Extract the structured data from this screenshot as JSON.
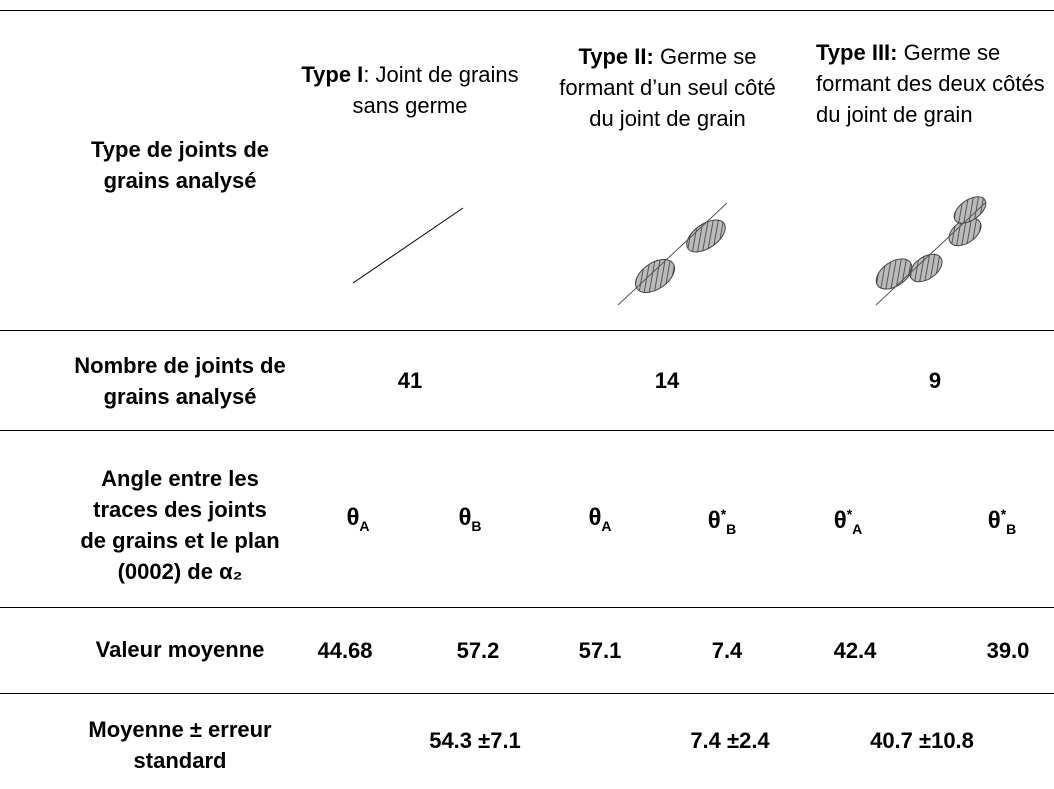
{
  "table": {
    "header": {
      "label": "Type de joints de grains analysé",
      "types": [
        {
          "bold": "Type I",
          "text": ": Joint de grains sans germe"
        },
        {
          "bold": "Type II:",
          "text": " Germe se formant d’un seul côté du joint de grain"
        },
        {
          "bold": "Type III:",
          "text": " Germe se formant des deux côtés du joint de grain"
        }
      ]
    },
    "rows": [
      {
        "label": "Nombre de joints de grains analysé",
        "cells": [
          "41",
          "14",
          "9"
        ]
      },
      {
        "label": "Angle entre les traces des joints de grains et le plan (0002) de α₂",
        "cells": [
          {
            "base": "θ",
            "sub": "A"
          },
          {
            "base": "θ",
            "sub": "B"
          },
          {
            "base": "θ",
            "sub": "A"
          },
          {
            "base": "θ",
            "sup": "*",
            "sub": "B"
          },
          {
            "base": "θ",
            "sup": "*",
            "sub": "A"
          },
          {
            "base": "θ",
            "sup": "*",
            "sub": "B"
          }
        ]
      },
      {
        "label": "Valeur moyenne",
        "cells": [
          "44.68",
          "57.2",
          "57.1",
          "7.4",
          "42.4",
          "39.0"
        ]
      },
      {
        "label": "Moyenne ± erreur standard",
        "cells": [
          "54.3 ±7.1",
          "7.4 ±2.4",
          "40.7 ±10.8"
        ]
      }
    ]
  }
}
